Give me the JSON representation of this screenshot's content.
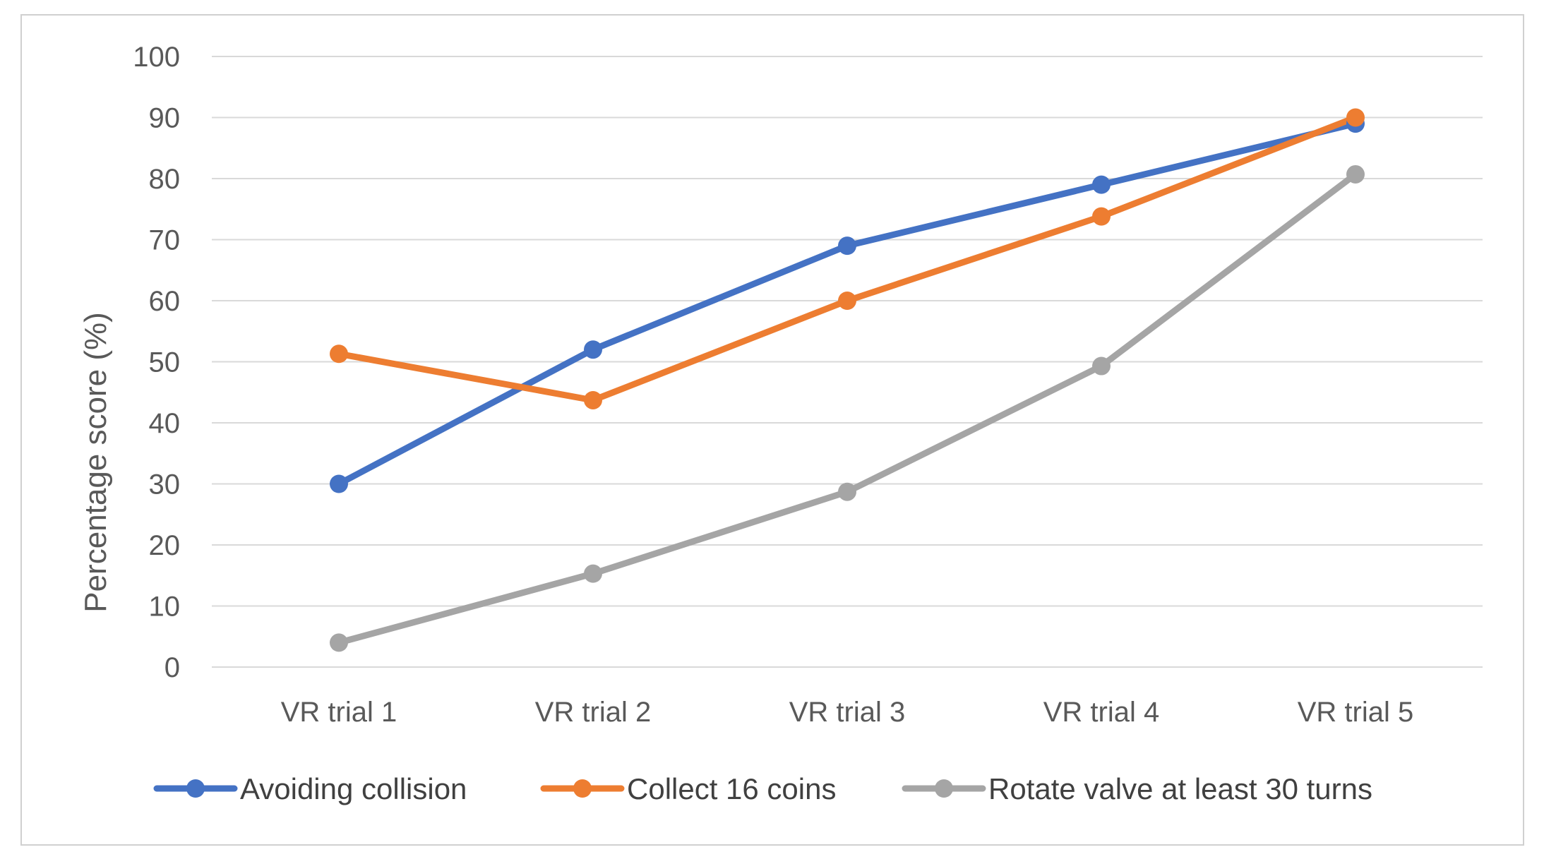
{
  "chart_data": {
    "type": "line",
    "title": "",
    "xlabel": "",
    "ylabel": "Percentage score (%)",
    "ylim": [
      0,
      100
    ],
    "yticks": [
      0,
      10,
      20,
      30,
      40,
      50,
      60,
      70,
      80,
      90,
      100
    ],
    "ytick_labels": [
      "0",
      "10",
      "20",
      "30",
      "40",
      "50",
      "60",
      "70",
      "80",
      "90",
      "100"
    ],
    "grid": true,
    "legend_position": "bottom",
    "categories": [
      "VR trial 1",
      "VR trial 2",
      "VR trial 3",
      "VR trial 4",
      "VR trial 5"
    ],
    "series": [
      {
        "name": "Avoiding collision",
        "color": "#4472C4",
        "values": [
          30,
          52,
          69,
          79,
          89
        ]
      },
      {
        "name": "Collect 16 coins",
        "color": "#ED7D31",
        "values": [
          51.3,
          43.7,
          60,
          73.8,
          90
        ]
      },
      {
        "name": "Rotate valve at least 30 turns",
        "color": "#A5A5A5",
        "values": [
          4,
          15.3,
          28.7,
          49.3,
          80.7
        ]
      }
    ]
  }
}
